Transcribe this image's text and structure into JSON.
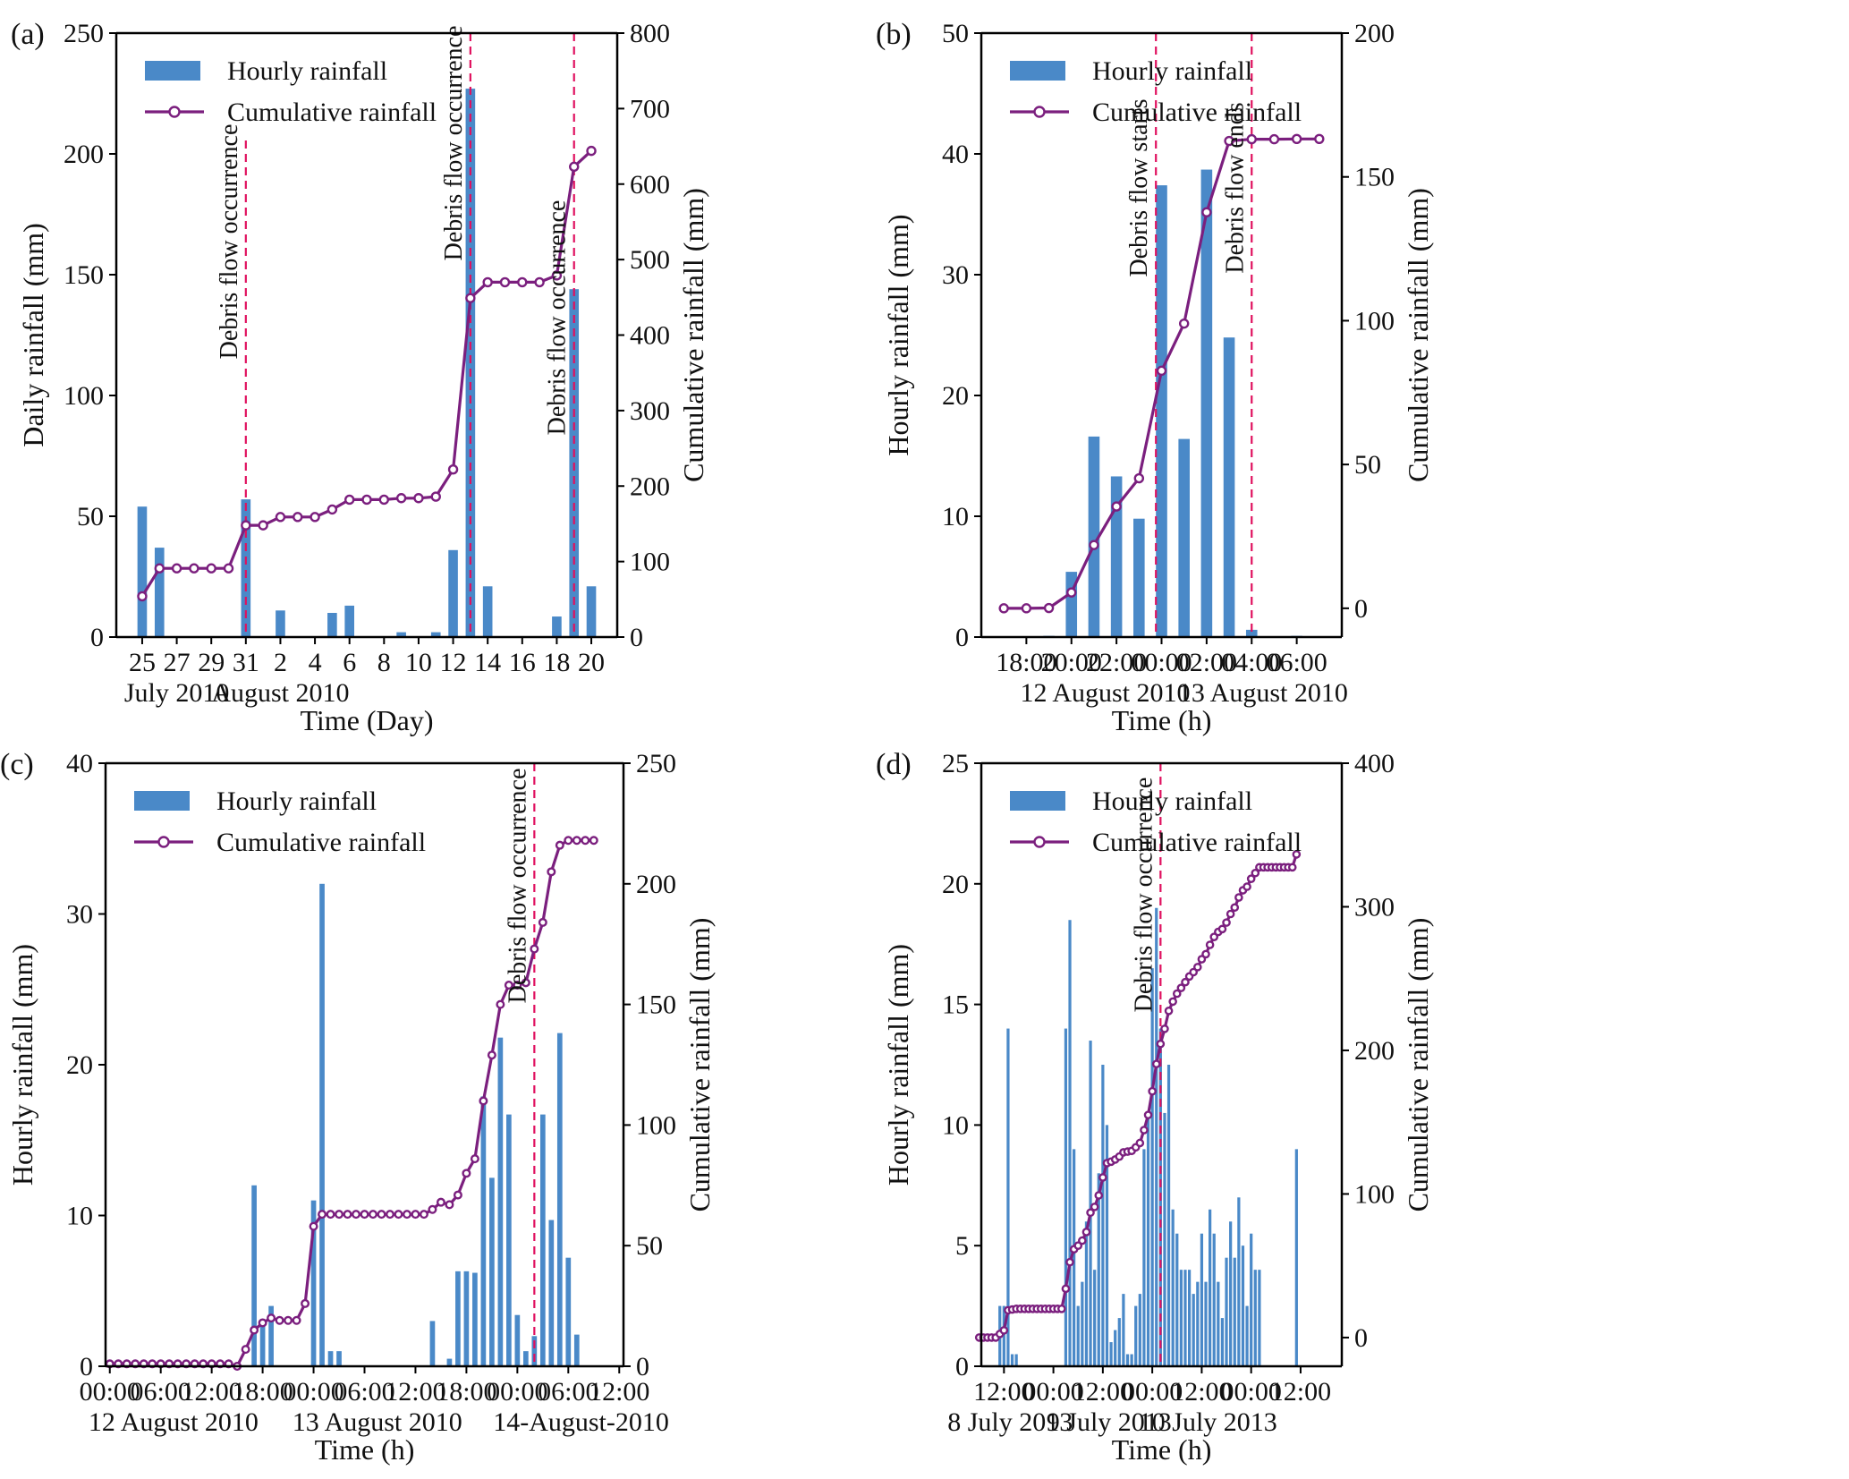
{
  "figure": {
    "colors": {
      "bar": "#4a89c8",
      "line": "#7b1f7e",
      "marker_face": "#ffffff",
      "event_line": "#e0115f"
    }
  },
  "chart_data": [
    {
      "id": "a",
      "panel_label": "(a)",
      "type": "bar+line",
      "xlabel": "Time (Day)",
      "ylabel": "Daily rainfall (mm)",
      "ylabel_right": "Cumulative rainfall (mm)",
      "ylim": [
        0,
        250
      ],
      "ylim_right": [
        0,
        800
      ],
      "yticks": [
        0,
        50,
        100,
        150,
        200,
        250
      ],
      "yticks_right": [
        0,
        100,
        200,
        300,
        400,
        500,
        600,
        700,
        800
      ],
      "xlim": [
        -1.5,
        27.5
      ],
      "xticks": [
        0,
        2,
        4,
        6,
        8,
        10,
        12,
        14,
        16,
        18,
        20,
        22,
        24,
        26
      ],
      "xtick_labels": [
        "25",
        "27",
        "29",
        "31",
        "2",
        "4",
        "6",
        "8",
        "10",
        "12",
        "14",
        "16",
        "18",
        "20"
      ],
      "date_labels": [
        {
          "x": 2,
          "text": "July 2010"
        },
        {
          "x": 8,
          "text": "August 2010"
        }
      ],
      "legend": [
        "Hourly rainfall",
        "Cumulative rainfall"
      ],
      "legend_position": "top-left",
      "series": [
        {
          "name": "Hourly rainfall",
          "kind": "bar",
          "axis": "left",
          "x": [
            0,
            1,
            2,
            3,
            4,
            5,
            6,
            7,
            8,
            9,
            10,
            11,
            12,
            13,
            14,
            15,
            16,
            17,
            18,
            19,
            20,
            21,
            22,
            23,
            24,
            25,
            26
          ],
          "values": [
            54,
            37,
            0,
            0,
            0,
            0.3,
            57,
            0,
            11,
            0,
            0,
            10,
            13,
            0,
            0,
            2,
            0,
            2,
            36,
            227,
            21,
            0,
            0,
            0,
            8.5,
            144,
            21
          ]
        },
        {
          "name": "Cumulative rainfall",
          "kind": "line",
          "axis": "right",
          "x": [
            0,
            1,
            2,
            3,
            4,
            5,
            6,
            7,
            8,
            9,
            10,
            11,
            12,
            13,
            14,
            15,
            16,
            17,
            18,
            19,
            20,
            21,
            22,
            23,
            24,
            25,
            26
          ],
          "values": [
            54,
            91,
            91,
            91,
            91,
            91,
            148,
            148,
            159,
            159,
            159,
            169,
            182,
            182,
            182,
            184,
            184,
            186,
            222,
            449,
            470,
            470,
            470,
            470,
            479,
            623,
            644
          ]
        }
      ],
      "annotations": [
        {
          "x": 6,
          "text": "Debris flow occurrence"
        },
        {
          "x": 19,
          "text": "Debris flow occurrence"
        },
        {
          "x": 25,
          "text": "Debris flow occurrence"
        }
      ]
    },
    {
      "id": "b",
      "panel_label": "(b)",
      "type": "bar+line",
      "xlabel": "Time (h)",
      "ylabel": "Hourly rainfall (mm)",
      "ylabel_right": "Cumulative rainfall (mm)",
      "ylim": [
        0,
        50
      ],
      "ylim_right": [
        -10,
        200
      ],
      "yticks": [
        0,
        10,
        20,
        30,
        40,
        50
      ],
      "yticks_right": [
        0,
        50,
        100,
        150,
        200
      ],
      "xlim": [
        -1,
        15
      ],
      "xticks": [
        1,
        3,
        5,
        7,
        9,
        11,
        13
      ],
      "xtick_labels": [
        "18:00",
        "20:00",
        "22:00",
        "00:00",
        "02:00",
        "04:00",
        "06:00"
      ],
      "date_labels": [
        {
          "x": 4.5,
          "text": "12 August 2010"
        },
        {
          "x": 11.5,
          "text": "13 August 2010"
        }
      ],
      "legend": [
        "Hourly rainfall",
        "Cumulative rainfall"
      ],
      "legend_position": "top-left",
      "series": [
        {
          "name": "Hourly rainfall",
          "kind": "bar",
          "axis": "left",
          "x": [
            0,
            1,
            2,
            3,
            4,
            5,
            6,
            7,
            8,
            9,
            10,
            11,
            12,
            13,
            14
          ],
          "values": [
            0,
            0,
            0.1,
            5.4,
            16.6,
            13.3,
            9.8,
            37.4,
            16.4,
            38.7,
            24.8,
            0.6,
            0,
            0.1,
            0
          ]
        },
        {
          "name": "Cumulative rainfall",
          "kind": "line",
          "axis": "right",
          "x": [
            0,
            1,
            2,
            3,
            4,
            5,
            6,
            7,
            8,
            9,
            10,
            11,
            12,
            13,
            14
          ],
          "values": [
            0,
            0,
            0.1,
            5.5,
            22,
            35.4,
            45.2,
            82.6,
            99,
            137.7,
            162.5,
            163.1,
            163.1,
            163.2,
            163.2
          ]
        }
      ],
      "annotations": [
        {
          "x": 6.75,
          "text": "Debris flow starts"
        },
        {
          "x": 11,
          "text": "Debris flow ends"
        }
      ]
    },
    {
      "id": "c",
      "panel_label": "(c)",
      "type": "bar+line",
      "xlabel": "Time (h)",
      "ylabel": "Hourly rainfall (mm)",
      "ylabel_right": "Cumulative rainfall (mm)",
      "ylim": [
        0,
        40
      ],
      "ylim_right": [
        0,
        250
      ],
      "yticks": [
        0,
        10,
        20,
        30,
        40
      ],
      "yticks_right": [
        0,
        50,
        100,
        150,
        200,
        250
      ],
      "xlim": [
        -0.5,
        60.5
      ],
      "xticks": [
        0,
        6,
        12,
        18,
        24,
        30,
        36,
        42,
        48,
        54,
        60
      ],
      "xtick_labels": [
        "00:00",
        "06:00",
        "12:00",
        "18:00",
        "00:00",
        "06:00",
        "12:00",
        "18:00",
        "00:00",
        "06:00",
        "12:00"
      ],
      "date_labels": [
        {
          "x": 7.5,
          "text": "12 August 2010"
        },
        {
          "x": 31.5,
          "text": "13 August 2010"
        },
        {
          "x": 55.5,
          "text": "14-August-2010"
        }
      ],
      "legend": [
        "Hourly rainfall",
        "Cumulative rainfall"
      ],
      "legend_position": "top-left",
      "series": [
        {
          "name": "Hourly rainfall",
          "kind": "bar",
          "axis": "left",
          "x": [
            17,
            18,
            19,
            24,
            25,
            26,
            27,
            38,
            40,
            41,
            42,
            43,
            44,
            45,
            46,
            47,
            48,
            49,
            50,
            51,
            52,
            53,
            54,
            55
          ],
          "values": [
            12,
            3,
            4,
            11,
            32,
            1,
            1,
            3,
            0.5,
            6.3,
            6.3,
            6.2,
            17.9,
            12.5,
            21.8,
            16.7,
            3.4,
            1,
            2,
            16.7,
            9.7,
            22.1,
            7.2,
            2.1
          ]
        },
        {
          "name": "Cumulative rainfall",
          "kind": "line",
          "axis": "right",
          "x": [
            0,
            1,
            2,
            3,
            4,
            5,
            6,
            7,
            8,
            9,
            10,
            11,
            12,
            13,
            14,
            15,
            16,
            17,
            18,
            19,
            20,
            21,
            22,
            23,
            24,
            25,
            26,
            27,
            28,
            29,
            30,
            31,
            32,
            33,
            34,
            35,
            36,
            37,
            38,
            39,
            40,
            41,
            42,
            43,
            44,
            45,
            46,
            47,
            48,
            49,
            50,
            51,
            52,
            53,
            54,
            55,
            56,
            57
          ],
          "values": [
            1,
            1,
            1,
            1,
            1,
            1,
            1,
            1,
            1,
            1,
            1,
            1,
            1,
            1,
            1,
            0,
            7,
            15,
            18,
            20,
            19,
            19,
            19,
            26,
            58,
            63,
            63,
            63,
            63,
            63,
            63,
            63,
            63,
            63,
            63,
            63,
            63,
            63,
            65,
            68,
            67,
            71,
            80,
            86,
            110,
            129,
            150,
            158,
            158,
            159,
            173,
            184,
            205,
            216,
            218,
            218,
            218,
            218
          ]
        }
      ],
      "annotations": [
        {
          "x": 50,
          "text": "Debris flow    occurrence"
        }
      ]
    },
    {
      "id": "d",
      "panel_label": "(d)",
      "type": "bar+line",
      "xlabel": "Time (h)",
      "ylabel": "Hourly rainfall (mm)",
      "ylabel_right": "Cumulative rainfall (mm)",
      "ylim": [
        0,
        25
      ],
      "ylim_right": [
        -20,
        400
      ],
      "yticks": [
        0,
        5,
        10,
        15,
        20,
        25
      ],
      "yticks_right": [
        0,
        100,
        200,
        300,
        400
      ],
      "xlim": [
        -5.5,
        82
      ],
      "xticks": [
        0,
        12,
        24,
        36,
        48,
        60,
        72
      ],
      "xtick_labels": [
        "12:00",
        "00:00",
        "12:00",
        "00:00",
        "12:00",
        "00:00",
        "12:00"
      ],
      "date_labels": [
        {
          "x": 1.5,
          "text": "8 July 2013"
        },
        {
          "x": 25.5,
          "text": "9 July 2013"
        },
        {
          "x": 49.5,
          "text": "10 July 2013"
        }
      ],
      "legend": [
        "Hourly rainfall",
        "Cumulative rainfall"
      ],
      "legend_position": "top-left",
      "series": [
        {
          "name": "Hourly rainfall",
          "kind": "bar",
          "axis": "left",
          "x": [
            -1,
            0,
            1,
            2,
            3,
            15,
            16,
            17,
            18,
            19,
            20,
            21,
            22,
            23,
            24,
            25,
            26,
            27,
            28,
            29,
            30,
            31,
            32,
            33,
            34,
            35,
            36,
            37,
            38,
            39,
            40,
            41,
            42,
            43,
            44,
            45,
            46,
            47,
            48,
            49,
            50,
            51,
            52,
            53,
            54,
            55,
            56,
            57,
            58,
            59,
            60,
            61,
            62,
            71
          ],
          "values": [
            2.5,
            2.5,
            14,
            0.5,
            0.5,
            14,
            18.5,
            9,
            2.5,
            3.5,
            6,
            13.5,
            4,
            8,
            12.5,
            10,
            1,
            1.5,
            2,
            3,
            0.5,
            0.5,
            2.5,
            3,
            9,
            10.5,
            16.5,
            19,
            14,
            10.5,
            12.5,
            6.5,
            5.5,
            4,
            4,
            4,
            3,
            3.5,
            5.5,
            3.5,
            6.5,
            5.5,
            3.5,
            2,
            4.5,
            6,
            4.5,
            7,
            5,
            2.5,
            5.5,
            4,
            4,
            9
          ]
        },
        {
          "name": "Cumulative rainfall",
          "kind": "line",
          "axis": "right",
          "x": [
            -6,
            -5,
            -4,
            -3,
            -2,
            -1,
            0,
            1,
            2,
            3,
            4,
            5,
            6,
            7,
            8,
            9,
            10,
            11,
            12,
            13,
            14,
            15,
            16,
            17,
            18,
            19,
            20,
            21,
            22,
            23,
            24,
            25,
            26,
            27,
            28,
            29,
            30,
            31,
            32,
            33,
            34,
            35,
            36,
            37,
            38,
            39,
            40,
            41,
            42,
            43,
            44,
            45,
            46,
            47,
            48,
            49,
            50,
            51,
            52,
            53,
            54,
            55,
            56,
            57,
            58,
            59,
            60,
            61,
            62,
            63,
            64,
            65,
            66,
            67,
            68,
            69,
            70,
            71
          ],
          "values": [
            0,
            0,
            0,
            0,
            0,
            2.5,
            5,
            19,
            19.5,
            20,
            20,
            20,
            20,
            20,
            20,
            20,
            20,
            20,
            20,
            20,
            20,
            34,
            52.5,
            61.5,
            64,
            67.5,
            73.5,
            87,
            91,
            99,
            111.5,
            121.5,
            122.5,
            124,
            126,
            129,
            129.5,
            130,
            132.5,
            135.5,
            144.5,
            155,
            171.5,
            190.5,
            204.5,
            215,
            227.5,
            234,
            239.5,
            243.5,
            247.5,
            251.5,
            254.5,
            258,
            263.5,
            267,
            273.5,
            279,
            282.5,
            284.5,
            289,
            295,
            299.5,
            306.5,
            311.5,
            314,
            319.5,
            323.5,
            327.5,
            327.5,
            327.5,
            327.5,
            327.5,
            327.5,
            327.5,
            327.5,
            327.5,
            336.5
          ]
        }
      ],
      "annotations": [
        {
          "x": 38,
          "text": "Debris flow occurrence"
        }
      ]
    }
  ]
}
